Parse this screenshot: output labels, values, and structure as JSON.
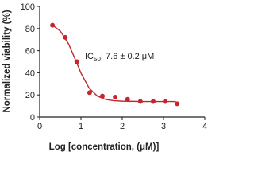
{
  "chart_data": {
    "type": "scatter",
    "xlabel": "Log [concentration, (μM)]",
    "ylabel": "Normalized viability (%)",
    "annotation": {
      "text": "IC",
      "sub": "50",
      "rest": ": 7.6 ± 0.2 μM"
    },
    "xlim": [
      0,
      4
    ],
    "xticks": [
      0,
      1,
      2,
      3,
      4
    ],
    "ylim": [
      0,
      100
    ],
    "yticks": [
      0,
      20,
      40,
      60,
      80,
      100
    ],
    "series": [
      {
        "mode": "markers",
        "color": "#c4262e",
        "x": [
          0.31,
          0.62,
          0.9,
          1.21,
          1.52,
          1.83,
          2.13,
          2.44,
          2.75,
          3.04,
          3.33
        ],
        "values": [
          83,
          72,
          50,
          22,
          19,
          18,
          16,
          14,
          14,
          14,
          12
        ]
      },
      {
        "mode": "line",
        "color": "#c4262e",
        "x": [
          0.3,
          0.5,
          0.7,
          0.88,
          1.0,
          1.2,
          1.4,
          1.6,
          1.8,
          2.0,
          2.5,
          3.0,
          3.3
        ],
        "values": [
          83.3,
          77.7,
          66.1,
          50.5,
          39.7,
          26.0,
          18.9,
          15.9,
          14.7,
          14.3,
          14.0,
          14.0,
          14.0
        ]
      }
    ]
  }
}
